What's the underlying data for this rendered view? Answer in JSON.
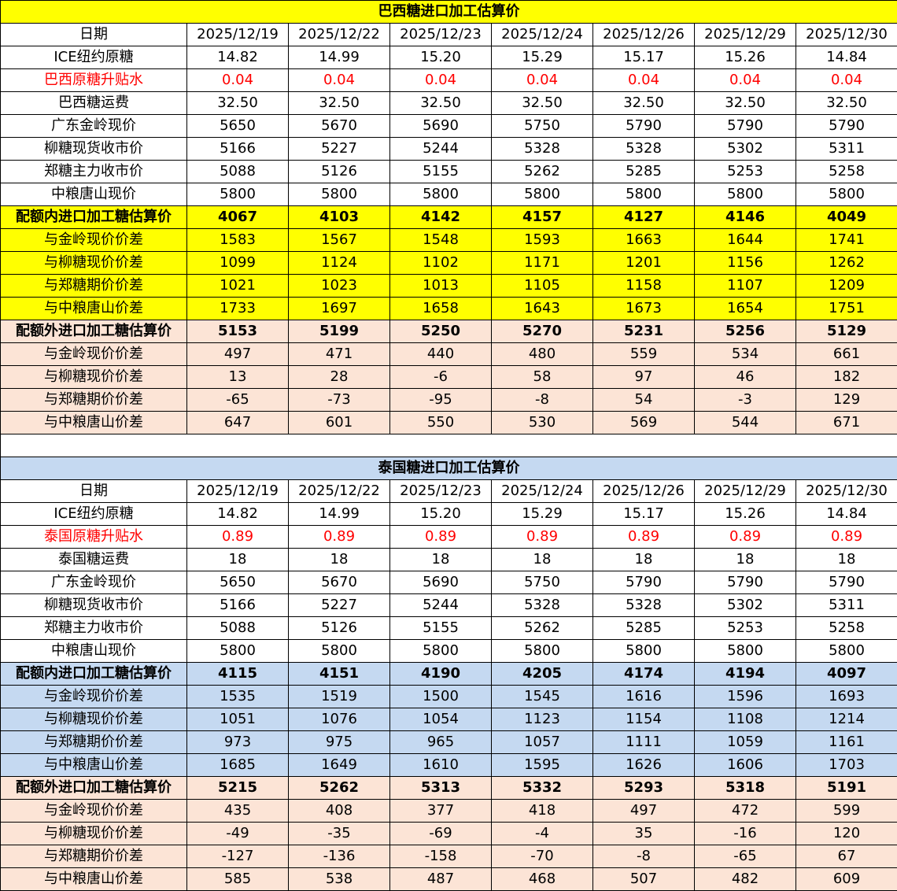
{
  "colors": {
    "yellow": "#ffff00",
    "peach": "#fce4d6",
    "blue": "#c5d9f1",
    "red": "#ff0000"
  },
  "tables": [
    {
      "title": "巴西糖进口加工估算价",
      "theme": "yellow",
      "rows": [
        {
          "label": "日期",
          "style": "",
          "values": [
            "2025/12/19",
            "2025/12/22",
            "2025/12/23",
            "2025/12/24",
            "2025/12/26",
            "2025/12/29",
            "2025/12/30"
          ]
        },
        {
          "label": "ICE纽约原糖",
          "style": "",
          "values": [
            "14.82",
            "14.99",
            "15.20",
            "15.29",
            "15.17",
            "15.26",
            "14.84"
          ]
        },
        {
          "label": "巴西原糖升贴水",
          "style": "red",
          "values": [
            "0.04",
            "0.04",
            "0.04",
            "0.04",
            "0.04",
            "0.04",
            "0.04"
          ]
        },
        {
          "label": "巴西糖运费",
          "style": "",
          "values": [
            "32.50",
            "32.50",
            "32.50",
            "32.50",
            "32.50",
            "32.50",
            "32.50"
          ]
        },
        {
          "label": "广东金岭现价",
          "style": "",
          "values": [
            "5650",
            "5670",
            "5690",
            "5750",
            "5790",
            "5790",
            "5790"
          ]
        },
        {
          "label": "柳糖现货收市价",
          "style": "",
          "values": [
            "5166",
            "5227",
            "5244",
            "5328",
            "5328",
            "5302",
            "5311"
          ]
        },
        {
          "label": "郑糖主力收市价",
          "style": "",
          "values": [
            "5088",
            "5126",
            "5155",
            "5262",
            "5285",
            "5253",
            "5258"
          ]
        },
        {
          "label": "中粮唐山现价",
          "style": "",
          "values": [
            "5800",
            "5800",
            "5800",
            "5800",
            "5800",
            "5800",
            "5800"
          ]
        },
        {
          "label": "配额内进口加工糖估算价",
          "style": "theme bold",
          "values": [
            "4067",
            "4103",
            "4142",
            "4157",
            "4127",
            "4146",
            "4049"
          ]
        },
        {
          "label": "与金岭现价价差",
          "style": "theme",
          "values": [
            "1583",
            "1567",
            "1548",
            "1593",
            "1663",
            "1644",
            "1741"
          ]
        },
        {
          "label": "与柳糖现价价差",
          "style": "theme",
          "values": [
            "1099",
            "1124",
            "1102",
            "1171",
            "1201",
            "1156",
            "1262"
          ]
        },
        {
          "label": "与郑糖期价价差",
          "style": "theme",
          "values": [
            "1021",
            "1023",
            "1013",
            "1105",
            "1158",
            "1107",
            "1209"
          ]
        },
        {
          "label": "与中粮唐山价差",
          "style": "theme",
          "values": [
            "1733",
            "1697",
            "1658",
            "1643",
            "1673",
            "1654",
            "1751"
          ]
        },
        {
          "label": "配额外进口加工糖估算价",
          "style": "peach bold",
          "values": [
            "5153",
            "5199",
            "5250",
            "5270",
            "5231",
            "5256",
            "5129"
          ]
        },
        {
          "label": "与金岭现价价差",
          "style": "peach",
          "values": [
            "497",
            "471",
            "440",
            "480",
            "559",
            "534",
            "661"
          ]
        },
        {
          "label": "与柳糖现价价差",
          "style": "peach",
          "values": [
            "13",
            "28",
            "-6",
            "58",
            "97",
            "46",
            "182"
          ]
        },
        {
          "label": "与郑糖期价价差",
          "style": "peach",
          "values": [
            "-65",
            "-73",
            "-95",
            "-8",
            "54",
            "-3",
            "129"
          ]
        },
        {
          "label": "与中粮唐山价差",
          "style": "peach",
          "values": [
            "647",
            "601",
            "550",
            "530",
            "569",
            "544",
            "671"
          ]
        }
      ]
    },
    {
      "title": "泰国糖进口加工估算价",
      "theme": "blue",
      "rows": [
        {
          "label": "日期",
          "style": "",
          "values": [
            "2025/12/19",
            "2025/12/22",
            "2025/12/23",
            "2025/12/24",
            "2025/12/26",
            "2025/12/29",
            "2025/12/30"
          ]
        },
        {
          "label": "ICE纽约原糖",
          "style": "",
          "values": [
            "14.82",
            "14.99",
            "15.20",
            "15.29",
            "15.17",
            "15.26",
            "14.84"
          ]
        },
        {
          "label": "泰国原糖升贴水",
          "style": "red",
          "values": [
            "0.89",
            "0.89",
            "0.89",
            "0.89",
            "0.89",
            "0.89",
            "0.89"
          ]
        },
        {
          "label": "泰国糖运费",
          "style": "",
          "values": [
            "18",
            "18",
            "18",
            "18",
            "18",
            "18",
            "18"
          ]
        },
        {
          "label": "广东金岭现价",
          "style": "",
          "values": [
            "5650",
            "5670",
            "5690",
            "5750",
            "5790",
            "5790",
            "5790"
          ]
        },
        {
          "label": "柳糖现货收市价",
          "style": "",
          "values": [
            "5166",
            "5227",
            "5244",
            "5328",
            "5328",
            "5302",
            "5311"
          ]
        },
        {
          "label": "郑糖主力收市价",
          "style": "",
          "values": [
            "5088",
            "5126",
            "5155",
            "5262",
            "5285",
            "5253",
            "5258"
          ]
        },
        {
          "label": "中粮唐山现价",
          "style": "",
          "values": [
            "5800",
            "5800",
            "5800",
            "5800",
            "5800",
            "5800",
            "5800"
          ]
        },
        {
          "label": "配额内进口加工糖估算价",
          "style": "theme bold",
          "values": [
            "4115",
            "4151",
            "4190",
            "4205",
            "4174",
            "4194",
            "4097"
          ]
        },
        {
          "label": "与金岭现价价差",
          "style": "theme",
          "values": [
            "1535",
            "1519",
            "1500",
            "1545",
            "1616",
            "1596",
            "1693"
          ]
        },
        {
          "label": "与柳糖现价价差",
          "style": "theme",
          "values": [
            "1051",
            "1076",
            "1054",
            "1123",
            "1154",
            "1108",
            "1214"
          ]
        },
        {
          "label": "与郑糖期价价差",
          "style": "theme",
          "values": [
            "973",
            "975",
            "965",
            "1057",
            "1111",
            "1059",
            "1161"
          ]
        },
        {
          "label": "与中粮唐山价差",
          "style": "theme",
          "values": [
            "1685",
            "1649",
            "1610",
            "1595",
            "1626",
            "1606",
            "1703"
          ]
        },
        {
          "label": "配额外进口加工糖估算价",
          "style": "peach bold",
          "values": [
            "5215",
            "5262",
            "5313",
            "5332",
            "5293",
            "5318",
            "5191"
          ]
        },
        {
          "label": "与金岭现价价差",
          "style": "peach",
          "values": [
            "435",
            "408",
            "377",
            "418",
            "497",
            "472",
            "599"
          ]
        },
        {
          "label": "与柳糖现价价差",
          "style": "peach",
          "values": [
            "-49",
            "-35",
            "-69",
            "-4",
            "35",
            "-16",
            "120"
          ]
        },
        {
          "label": "与郑糖期价价差",
          "style": "peach",
          "values": [
            "-127",
            "-136",
            "-158",
            "-70",
            "-8",
            "-65",
            "67"
          ]
        },
        {
          "label": "与中粮唐山价差",
          "style": "peach",
          "values": [
            "585",
            "538",
            "487",
            "468",
            "507",
            "482",
            "609"
          ]
        }
      ]
    }
  ]
}
